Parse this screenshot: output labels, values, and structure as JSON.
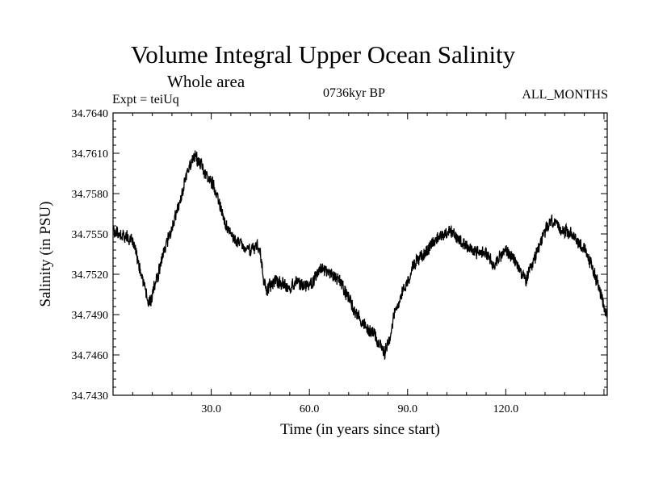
{
  "chart_data": {
    "type": "line",
    "title": "Volume Integral Upper Ocean Salinity",
    "subtitle": "Whole area",
    "experiment": "Expt = teiUq",
    "period": "0736kyr BP",
    "months": "ALL_MONTHS",
    "xlabel": "Time (in years since start)",
    "ylabel": "Salinity (in PSU)",
    "xlim": [
      0,
      151
    ],
    "ylim": [
      34.743,
      34.764
    ],
    "x_ticks": [
      30,
      60,
      90,
      120
    ],
    "x_tick_labels": [
      "30.0",
      "60.0",
      "90.0",
      "120.0"
    ],
    "y_ticks": [
      34.743,
      34.746,
      34.749,
      34.752,
      34.755,
      34.758,
      34.761,
      34.764
    ],
    "y_tick_labels": [
      "34.7430",
      "34.7460",
      "34.7490",
      "34.7520",
      "34.7550",
      "34.7580",
      "34.7610",
      "34.7640"
    ],
    "noise_amplitude": 0.0009,
    "series": [
      {
        "name": "salinity",
        "color": "#000000",
        "x": [
          0,
          3,
          6,
          8,
          10,
          11,
          12,
          14,
          16,
          18,
          20,
          22,
          24,
          25,
          26,
          27,
          28,
          30,
          32,
          34,
          36,
          38,
          40,
          42,
          44,
          45,
          46,
          47,
          48,
          50,
          52,
          54,
          56,
          58,
          60,
          62,
          64,
          66,
          68,
          70,
          72,
          74,
          76,
          78,
          80,
          82,
          83,
          84,
          85,
          86,
          88,
          90,
          92,
          95,
          98,
          100,
          103,
          106,
          110,
          114,
          116,
          118,
          120,
          122,
          124,
          126,
          128,
          130,
          132,
          134,
          136,
          138,
          140,
          142,
          144,
          146,
          148,
          150,
          151
        ],
        "y": [
          34.7553,
          34.7548,
          34.7546,
          34.7525,
          34.7508,
          34.7498,
          34.7505,
          34.7522,
          34.754,
          34.7555,
          34.757,
          34.759,
          34.7605,
          34.7608,
          34.7605,
          34.7602,
          34.7595,
          34.759,
          34.7578,
          34.756,
          34.7548,
          34.7545,
          34.754,
          34.7538,
          34.7542,
          34.7535,
          34.7515,
          34.7508,
          34.7512,
          34.7515,
          34.7512,
          34.7508,
          34.7515,
          34.7512,
          34.751,
          34.7518,
          34.7525,
          34.752,
          34.7518,
          34.7512,
          34.7502,
          34.7492,
          34.7485,
          34.7478,
          34.7475,
          34.7465,
          34.7462,
          34.7468,
          34.748,
          34.749,
          34.7505,
          34.7515,
          34.7528,
          34.7535,
          34.7545,
          34.7548,
          34.7552,
          34.7545,
          34.7538,
          34.7535,
          34.7528,
          34.7532,
          34.7538,
          34.7532,
          34.7525,
          34.7515,
          34.7525,
          34.754,
          34.7552,
          34.756,
          34.7555,
          34.7552,
          34.755,
          34.7545,
          34.7538,
          34.7528,
          34.7515,
          34.7495,
          34.749
        ]
      }
    ]
  }
}
